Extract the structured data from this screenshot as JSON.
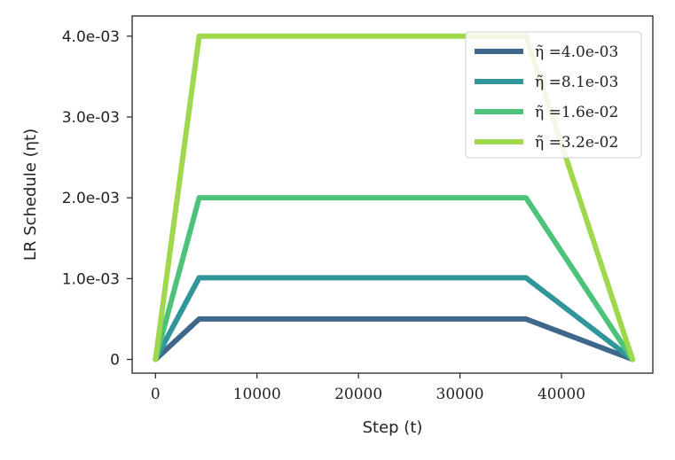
{
  "chart_data": {
    "type": "line",
    "xlabel": "Step (t)",
    "ylabel": "LR Schedule (ηt)",
    "xlim": [
      -2300,
      49000
    ],
    "ylim": [
      -0.00017,
      0.00425
    ],
    "x_ticks": [
      0,
      10000,
      20000,
      30000,
      40000
    ],
    "x_tick_labels": [
      "0",
      "10000",
      "20000",
      "30000",
      "40000"
    ],
    "y_ticks": [
      0,
      0.001,
      0.002,
      0.003,
      0.004
    ],
    "y_tick_labels": [
      "0",
      "1.0e-03",
      "2.0e-03",
      "3.0e-03",
      "4.0e-03"
    ],
    "grid": false,
    "legend_position": "top-right",
    "x": [
      0,
      4300,
      36500,
      47000
    ],
    "series": [
      {
        "name": "η̃ =4.0e-03",
        "color": "#3f678c",
        "values": [
          0,
          0.0005,
          0.0005,
          0
        ]
      },
      {
        "name": "η̃ =8.1e-03",
        "color": "#31969a",
        "values": [
          0,
          0.00101,
          0.00101,
          0
        ]
      },
      {
        "name": "η̃ =1.6e-02",
        "color": "#4cc27b",
        "values": [
          0,
          0.002,
          0.002,
          0
        ]
      },
      {
        "name": "η̃ =3.2e-02",
        "color": "#9fd84c",
        "values": [
          0,
          0.004,
          0.004,
          0
        ]
      }
    ]
  }
}
